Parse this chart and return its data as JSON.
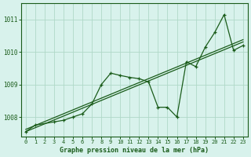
{
  "title": "Graphe pression niveau de la mer (hPa)",
  "background_color": "#d8f2ec",
  "line_color": "#1a5c1a",
  "grid_color": "#b0d8c8",
  "x_values": [
    0,
    1,
    2,
    3,
    4,
    5,
    6,
    7,
    8,
    9,
    10,
    11,
    12,
    13,
    14,
    15,
    16,
    17,
    18,
    19,
    20,
    21,
    22,
    23
  ],
  "y_main": [
    1007.55,
    1007.75,
    null,
    1007.85,
    1007.9,
    1008.0,
    1008.1,
    1008.4,
    1009.0,
    1009.35,
    1009.28,
    1009.22,
    1009.18,
    1009.08,
    1008.3,
    1008.3,
    1008.0,
    1009.7,
    1009.55,
    1010.15,
    1010.6,
    1011.15,
    1010.05,
    1010.2
  ],
  "y_trend_lo": [
    1007.55,
    1007.67,
    1007.79,
    1007.91,
    1008.03,
    1008.15,
    1008.27,
    1008.39,
    1008.51,
    1008.63,
    1008.75,
    1008.87,
    1008.99,
    1009.11,
    1009.23,
    1009.35,
    1009.47,
    1009.59,
    1009.71,
    1009.83,
    1009.95,
    1010.07,
    1010.19,
    1010.31
  ],
  "y_trend_hi": [
    1007.62,
    1007.74,
    1007.86,
    1007.98,
    1008.1,
    1008.22,
    1008.34,
    1008.46,
    1008.58,
    1008.7,
    1008.82,
    1008.94,
    1009.06,
    1009.18,
    1009.3,
    1009.42,
    1009.54,
    1009.66,
    1009.78,
    1009.9,
    1010.02,
    1010.14,
    1010.26,
    1010.38
  ],
  "ylim": [
    1007.4,
    1011.5
  ],
  "yticks": [
    1008,
    1009,
    1010,
    1011
  ],
  "xlim": [
    -0.5,
    23.5
  ],
  "xticks": [
    0,
    1,
    2,
    3,
    4,
    5,
    6,
    7,
    8,
    9,
    10,
    11,
    12,
    13,
    14,
    15,
    16,
    17,
    18,
    19,
    20,
    21,
    22,
    23
  ]
}
